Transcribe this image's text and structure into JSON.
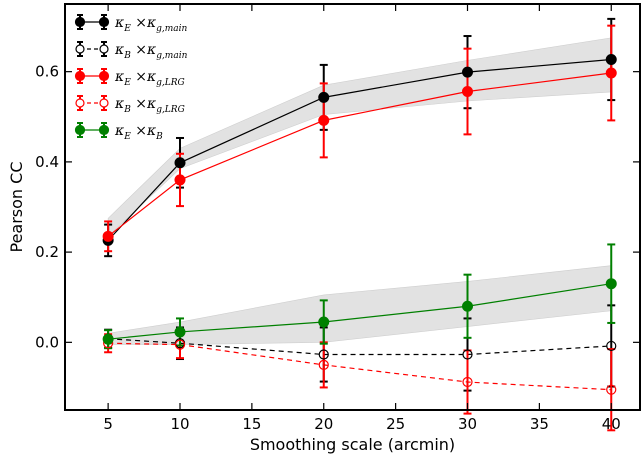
{
  "chart_data": {
    "type": "line",
    "xlabel": "Smoothing scale (arcmin)",
    "ylabel": "Pearson CC",
    "xlim": [
      2,
      42
    ],
    "ylim": [
      -0.15,
      0.75
    ],
    "xticks": [
      5,
      10,
      15,
      20,
      25,
      30,
      35,
      40
    ],
    "yticks": [
      0.0,
      0.2,
      0.4,
      0.6
    ],
    "ytick_labels": [
      "0.0",
      "0.2",
      "0.4",
      "0.6"
    ],
    "grid": false,
    "legend_position": "top-left",
    "x": [
      5,
      10,
      20,
      30,
      40
    ],
    "bands": [
      {
        "lower": [
          0.235,
          0.385,
          0.505,
          0.535,
          0.555
        ],
        "upper": [
          0.275,
          0.43,
          0.57,
          0.625,
          0.675
        ],
        "color": "#e2e2e2"
      },
      {
        "lower": [
          -0.005,
          -0.005,
          0.0,
          0.035,
          0.07
        ],
        "upper": [
          0.02,
          0.045,
          0.105,
          0.135,
          0.17
        ],
        "color": "#e2e2e2"
      }
    ],
    "series": [
      {
        "name": "κ_E ×κ_g,main",
        "main": "κ",
        "sub1": "E",
        "mid": " ×κ",
        "sub2": "g,main",
        "color": "#000000",
        "marker": "filled",
        "dashed": false,
        "values": [
          0.226,
          0.398,
          0.543,
          0.599,
          0.627
        ],
        "errors": [
          0.035,
          0.055,
          0.072,
          0.08,
          0.09
        ]
      },
      {
        "name": "κ_B ×κ_g,main",
        "main": "κ",
        "sub1": "B",
        "mid": " ×κ",
        "sub2": "g,main",
        "color": "#000000",
        "marker": "open",
        "dashed": true,
        "values": [
          0.008,
          -0.002,
          -0.027,
          -0.027,
          -0.008
        ],
        "errors": [
          0.02,
          0.035,
          0.06,
          0.08,
          0.09
        ]
      },
      {
        "name": "κ_E ×κ_g,LRG",
        "main": "κ",
        "sub1": "E",
        "mid": " ×κ",
        "sub2": "g,LRG",
        "color": "#ff0000",
        "marker": "filled",
        "dashed": false,
        "values": [
          0.235,
          0.36,
          0.492,
          0.556,
          0.597
        ],
        "errors": [
          0.033,
          0.058,
          0.082,
          0.095,
          0.105
        ]
      },
      {
        "name": "κ_B ×κ_g,LRG",
        "main": "κ",
        "sub1": "B",
        "mid": " ×κ",
        "sub2": "g,LRG",
        "color": "#ff0000",
        "marker": "open",
        "dashed": true,
        "values": [
          -0.002,
          -0.005,
          -0.05,
          -0.088,
          -0.105
        ],
        "errors": [
          0.02,
          0.03,
          0.05,
          0.07,
          0.09
        ]
      },
      {
        "name": "κ_E ×κ_B",
        "main": "κ",
        "sub1": "E",
        "mid": " ×κ",
        "sub2": "B",
        "color": "#008000",
        "marker": "filled",
        "dashed": false,
        "values": [
          0.007,
          0.023,
          0.045,
          0.08,
          0.13
        ],
        "errors": [
          0.02,
          0.03,
          0.048,
          0.07,
          0.087
        ]
      }
    ]
  }
}
